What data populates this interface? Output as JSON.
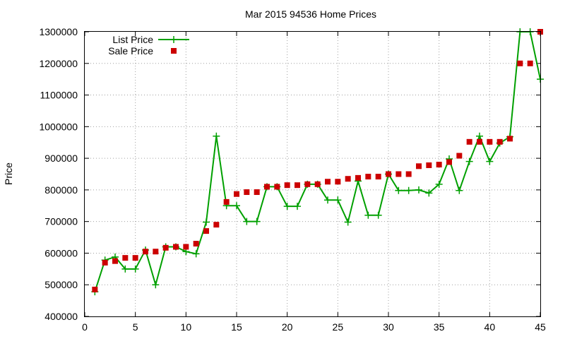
{
  "chart_data": {
    "type": "line",
    "title": "Mar 2015 94536 Home Prices",
    "xlabel": "",
    "ylabel": "Price",
    "xlim": [
      0,
      45
    ],
    "ylim": [
      400000,
      1300000
    ],
    "x_ticks": [
      0,
      5,
      10,
      15,
      20,
      25,
      30,
      35,
      40,
      45
    ],
    "y_ticks": [
      400000,
      500000,
      600000,
      700000,
      800000,
      900000,
      1000000,
      1100000,
      1200000,
      1300000
    ],
    "grid": true,
    "legend_position": "top-left",
    "series": [
      {
        "name": "List Price",
        "style": "line-plus",
        "color": "#00a000",
        "x": [
          1,
          2,
          3,
          4,
          5,
          6,
          7,
          8,
          9,
          10,
          11,
          12,
          13,
          14,
          15,
          16,
          17,
          18,
          19,
          20,
          21,
          22,
          23,
          24,
          25,
          26,
          27,
          28,
          29,
          30,
          31,
          32,
          33,
          34,
          35,
          36,
          37,
          38,
          39,
          40,
          41,
          42,
          43,
          44,
          45
        ],
        "y": [
          478000,
          578000,
          588000,
          550000,
          550000,
          610000,
          500000,
          620000,
          620000,
          605000,
          598000,
          698000,
          970000,
          750000,
          750000,
          700000,
          700000,
          810000,
          810000,
          748000,
          748000,
          818000,
          818000,
          768000,
          768000,
          698000,
          828000,
          720000,
          720000,
          850000,
          798000,
          798000,
          800000,
          790000,
          818000,
          898000,
          798000,
          890000,
          970000,
          890000,
          948000,
          968000,
          1300000,
          1300000,
          1150000
        ]
      },
      {
        "name": "Sale Price",
        "style": "square-points",
        "color": "#cc0000",
        "x": [
          1,
          2,
          3,
          4,
          5,
          6,
          7,
          8,
          9,
          10,
          11,
          12,
          13,
          14,
          15,
          16,
          17,
          18,
          19,
          20,
          21,
          22,
          23,
          24,
          25,
          26,
          27,
          28,
          29,
          30,
          31,
          32,
          33,
          34,
          35,
          36,
          37,
          38,
          39,
          40,
          41,
          42,
          43,
          44,
          45
        ],
        "y": [
          485000,
          570000,
          575000,
          585000,
          585000,
          605000,
          605000,
          617000,
          620000,
          620000,
          630000,
          670000,
          690000,
          762000,
          787000,
          793000,
          793000,
          810000,
          810000,
          815000,
          815000,
          818000,
          818000,
          826000,
          826000,
          835000,
          838000,
          842000,
          842000,
          850000,
          850000,
          850000,
          875000,
          878000,
          880000,
          888000,
          908000,
          952000,
          952000,
          952000,
          952000,
          962000,
          1200000,
          1200000,
          1300000
        ]
      }
    ]
  }
}
